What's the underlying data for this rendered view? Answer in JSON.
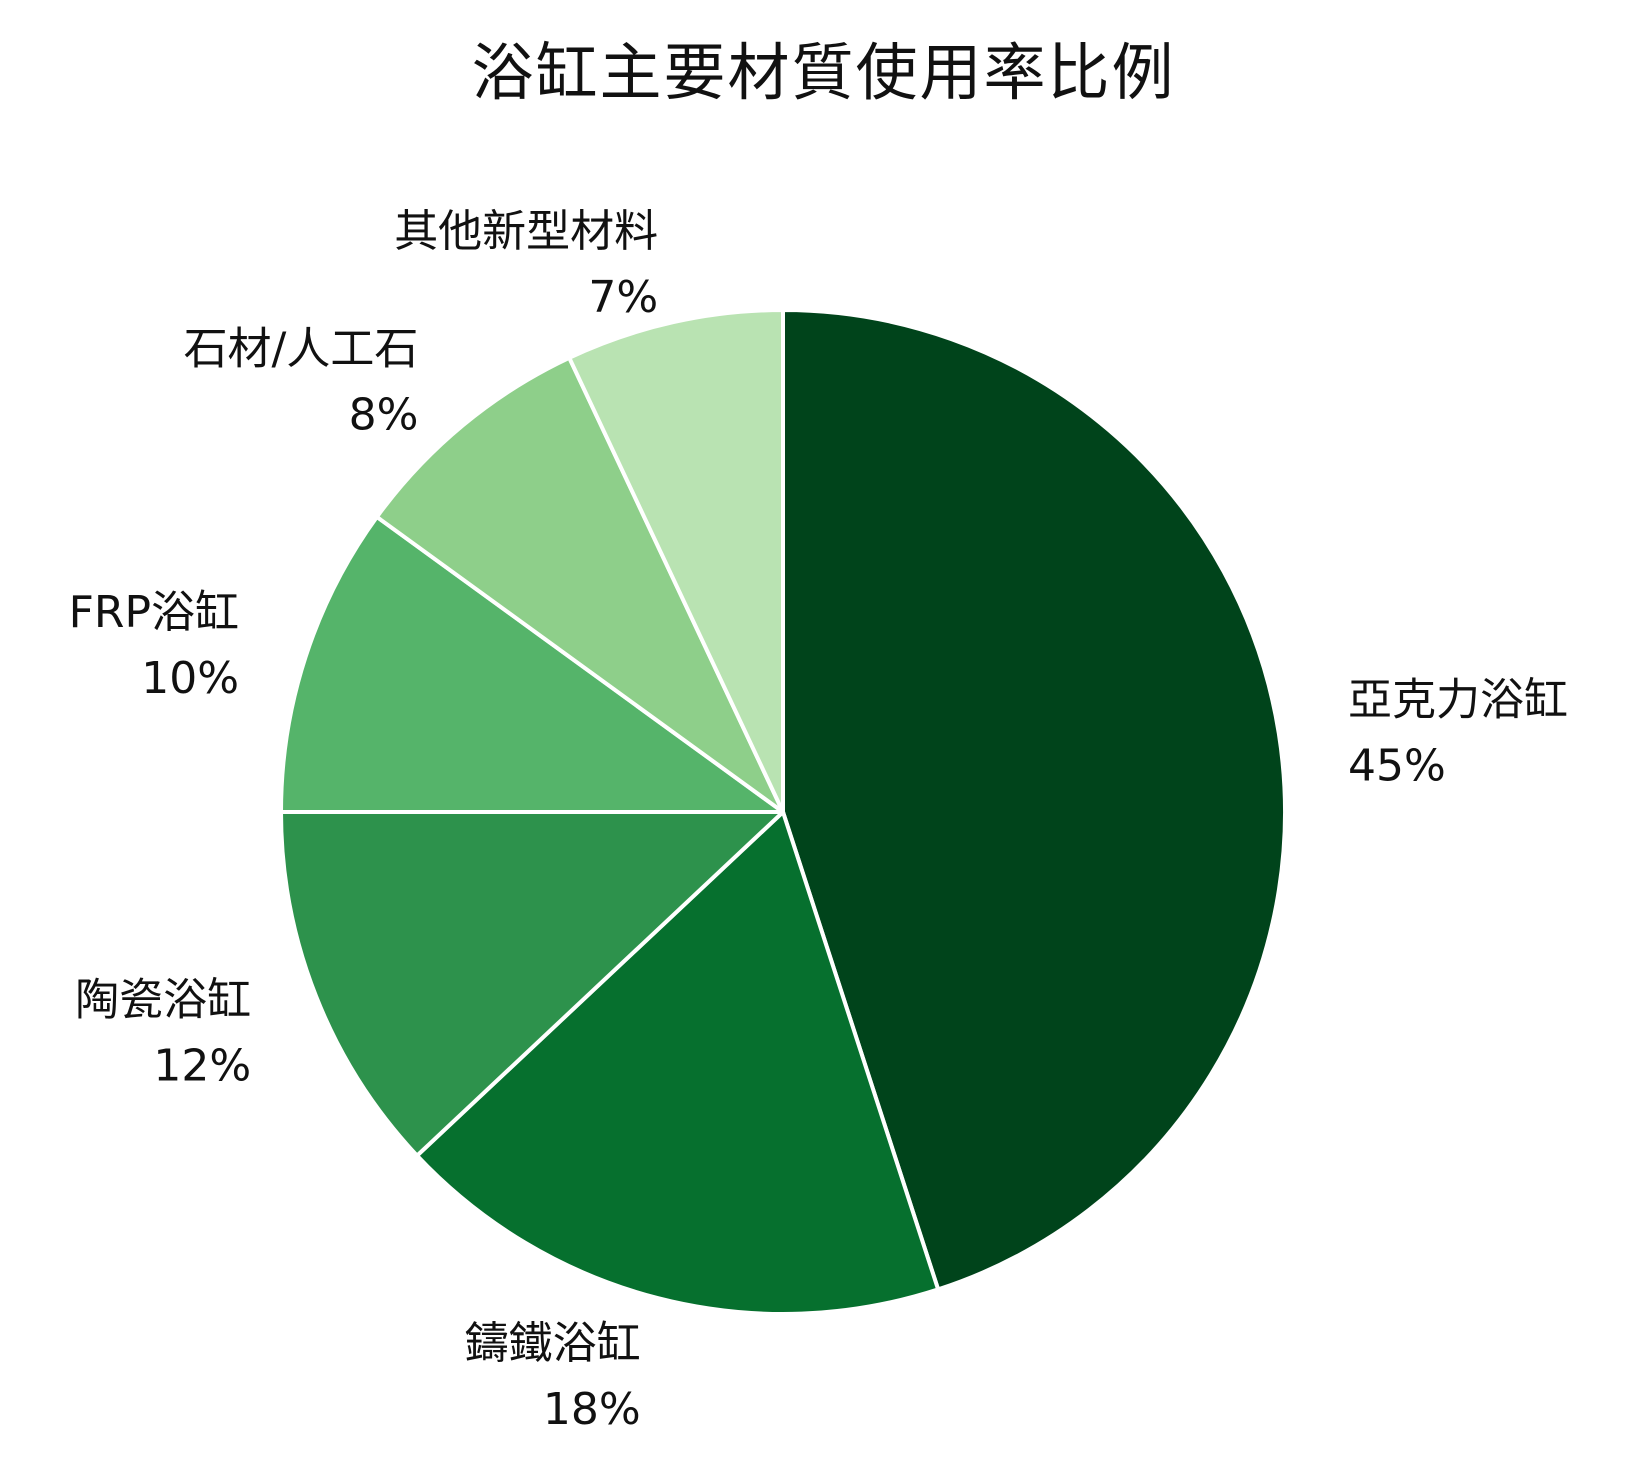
{
  "chart_data": {
    "type": "pie",
    "title": "浴缸主要材質使用率比例",
    "start_angle_deg": 0,
    "direction": "clockwise",
    "slices": [
      {
        "label": "亞克力浴缸",
        "value": 45,
        "value_label": "45%",
        "color": "#00441b"
      },
      {
        "label": "鑄鐵浴缸",
        "value": 18,
        "value_label": "18%",
        "color": "#06702e"
      },
      {
        "label": "陶瓷浴缸",
        "value": 12,
        "value_label": "12%",
        "color": "#2d924c"
      },
      {
        "label": "FRP浴缸",
        "value": 10,
        "value_label": "10%",
        "color": "#55b46a"
      },
      {
        "label": "石材/人工石",
        "value": 8,
        "value_label": "8%",
        "color": "#8ecf8a"
      },
      {
        "label": "其他新型材料",
        "value": 7,
        "value_label": "7%",
        "color": "#b9e3b2"
      }
    ]
  }
}
